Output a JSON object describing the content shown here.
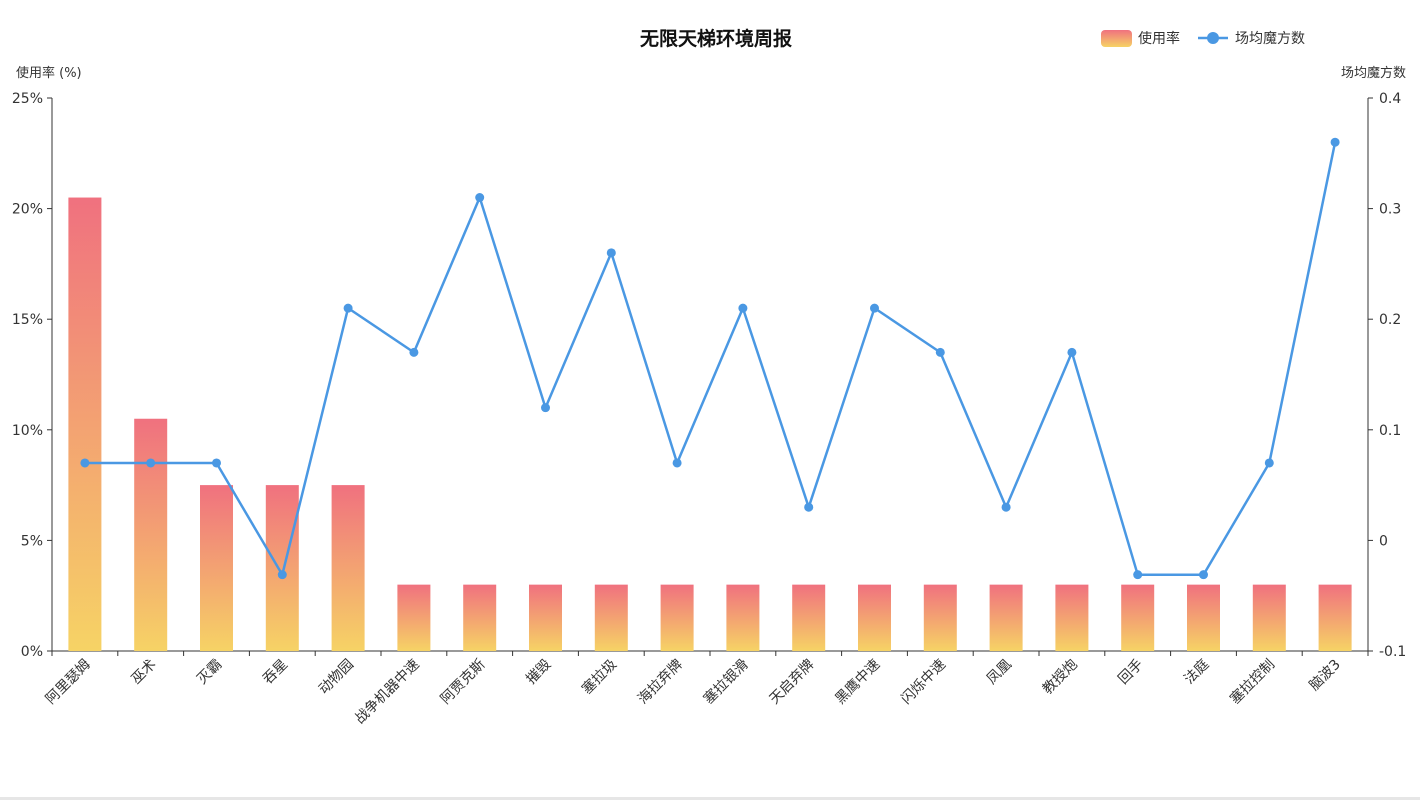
{
  "chart_data": {
    "type": "bar",
    "title": "无限天梯环境周报",
    "categories": [
      "阿里瑟姆",
      "巫术",
      "灭霸",
      "吞星",
      "动物园",
      "战争机器中速",
      "阿贾克斯",
      "摧毁",
      "塞拉圾",
      "海拉弃牌",
      "塞拉银滑",
      "天启弃牌",
      "黑鹰中速",
      "闪烁中速",
      "凤凰",
      "教授炮",
      "回手",
      "法庭",
      "塞拉控制",
      "脑波3"
    ],
    "series": [
      {
        "name": "使用率",
        "type": "bar",
        "axis": "left",
        "values": [
          20.5,
          10.5,
          7.5,
          7.5,
          7.5,
          3,
          3,
          3,
          3,
          3,
          3,
          3,
          3,
          3,
          3,
          3,
          3,
          3,
          3,
          3
        ],
        "gradient": [
          "#F0717F",
          "#F6D365"
        ]
      },
      {
        "name": "场均魔方数",
        "type": "line",
        "axis": "right",
        "values": [
          0.07,
          0.07,
          0.07,
          -0.031,
          0.21,
          0.17,
          0.31,
          0.12,
          0.26,
          0.07,
          0.21,
          0.03,
          0.21,
          0.17,
          0.03,
          0.17,
          -0.031,
          -0.031,
          0.07,
          0.36
        ],
        "color": "#4A98E3"
      }
    ],
    "yleft": {
      "label": "使用率 (%)",
      "ticks": [
        "0%",
        "5%",
        "10%",
        "15%",
        "20%",
        "25%"
      ],
      "ylim": [
        0,
        25
      ]
    },
    "yright": {
      "label": "场均魔方数",
      "ticks": [
        "-0.1",
        "0",
        "0.1",
        "0.2",
        "0.3",
        "0.4"
      ],
      "ylim": [
        -0.1,
        0.4
      ]
    },
    "legend": {
      "position": "top-right",
      "items": [
        "使用率",
        "场均魔方数"
      ]
    },
    "grid": false
  }
}
